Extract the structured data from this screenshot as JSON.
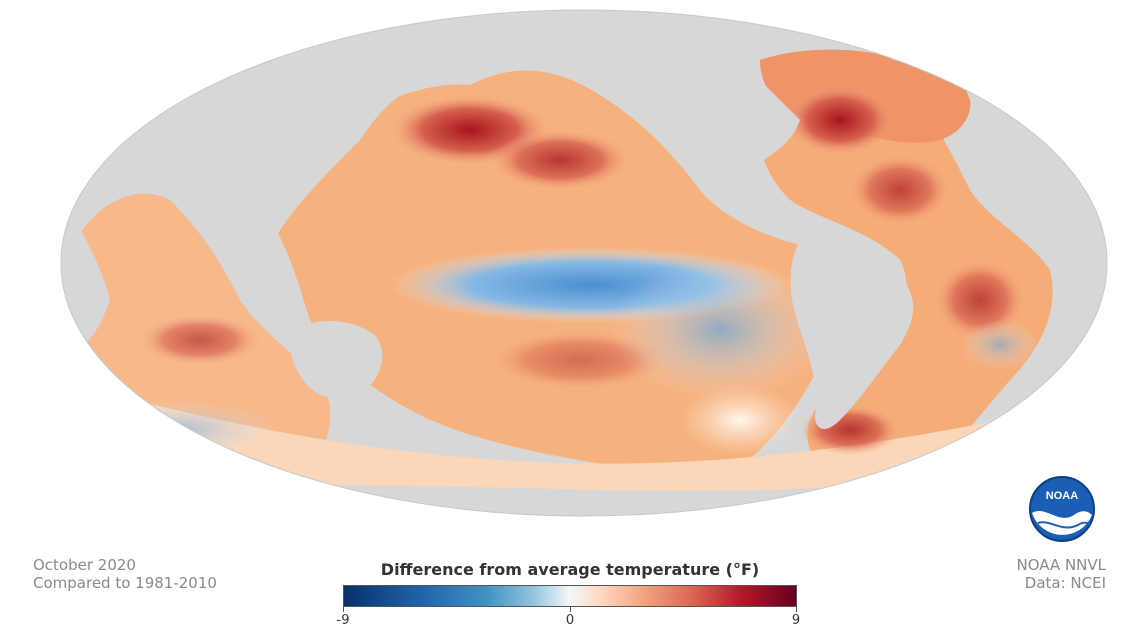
{
  "map": {
    "projection": "Mollweide",
    "land_color": "#d7d7d7",
    "background_color": "#ffffff",
    "colormap": {
      "min_color": "#08306b",
      "mid_color": "#f7f7f7",
      "max_color": "#67001f",
      "cold_color": "#4393c3",
      "warm_color": "#d6604d"
    }
  },
  "caption_left": {
    "line1": "October 2020",
    "line2": "Compared to 1981-2010"
  },
  "caption_right": {
    "line1": "NOAA NNVL",
    "line2": "Data: NCEI"
  },
  "legend": {
    "title": "Difference from average temperature (°F)",
    "min_label": "-9",
    "mid_label": "0",
    "max_label": "9",
    "min_value": -9,
    "max_value": 9
  },
  "logo": {
    "text": "NOAA",
    "icon": "noaa-logo-icon"
  }
}
